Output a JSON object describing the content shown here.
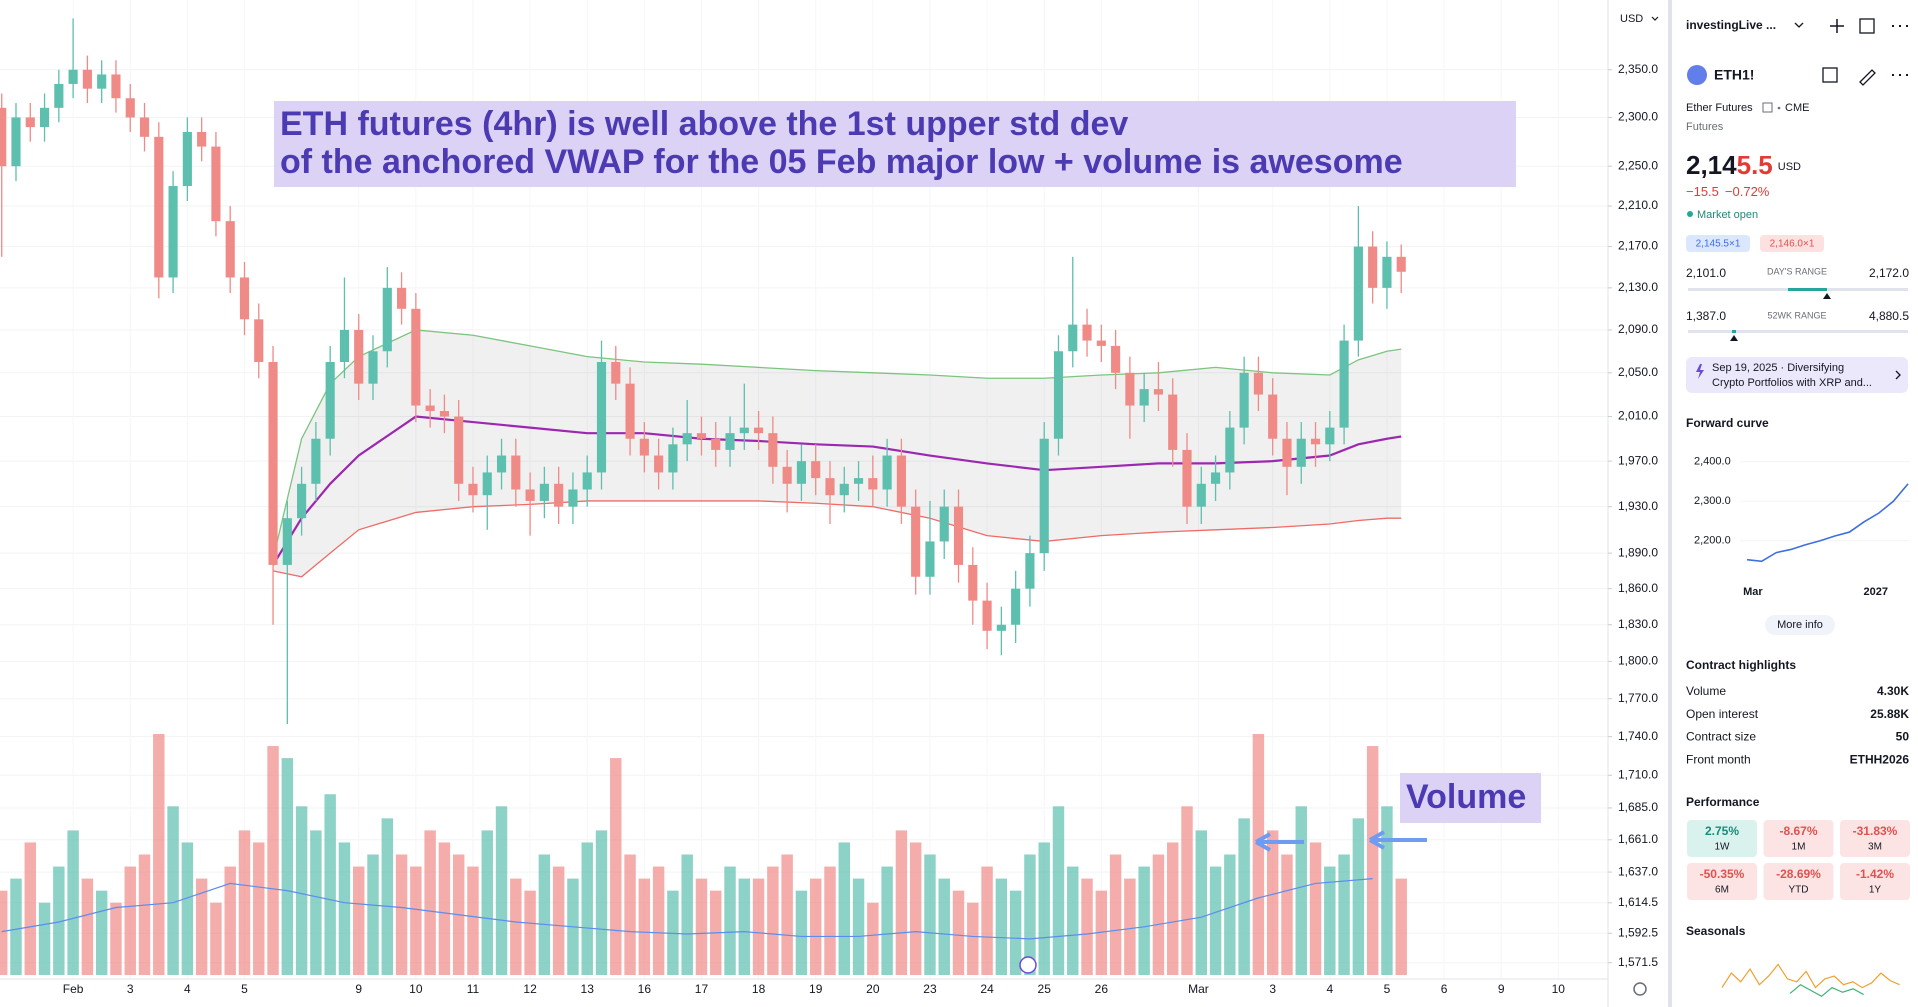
{
  "chart_data": {
    "type": "candlestick",
    "currency": "USD",
    "log_scale": true,
    "grid": true,
    "up_color": "#5dbfae",
    "down_color": "#f08a86",
    "xlim": [
      -1.28,
      26.87
    ],
    "ylim": [
      1560,
      2425
    ],
    "vlim": [
      0,
      100
    ],
    "yticks": [
      {
        "value": 2350,
        "label": "2,350.0"
      },
      {
        "value": 2300,
        "label": "2,300.0"
      },
      {
        "value": 2250,
        "label": "2,250.0"
      },
      {
        "value": 2210,
        "label": "2,210.0"
      },
      {
        "value": 2170,
        "label": "2,170.0"
      },
      {
        "value": 2130,
        "label": "2,130.0"
      },
      {
        "value": 2090,
        "label": "2,090.0"
      },
      {
        "value": 2050,
        "label": "2,050.0"
      },
      {
        "value": 2010,
        "label": "2,010.0"
      },
      {
        "value": 1970,
        "label": "1,970.0"
      },
      {
        "value": 1930,
        "label": "1,930.0"
      },
      {
        "value": 1890,
        "label": "1,890.0"
      },
      {
        "value": 1860,
        "label": "1,860.0"
      },
      {
        "value": 1830,
        "label": "1,830.0"
      },
      {
        "value": 1800,
        "label": "1,800.0"
      },
      {
        "value": 1770,
        "label": "1,770.0"
      },
      {
        "value": 1740,
        "label": "1,740.0"
      },
      {
        "value": 1710,
        "label": "1,710.0"
      },
      {
        "value": 1685,
        "label": "1,685.0"
      },
      {
        "value": 1661,
        "label": "1,661.0"
      },
      {
        "value": 1637,
        "label": "1,637.0"
      },
      {
        "value": 1614.5,
        "label": "1,614.5"
      },
      {
        "value": 1592.5,
        "label": "1,592.5"
      },
      {
        "value": 1571.5,
        "label": "1,571.5"
      }
    ],
    "xticks": [
      {
        "value": 0,
        "label": "Feb"
      },
      {
        "value": 1,
        "label": "3"
      },
      {
        "value": 2,
        "label": "4"
      },
      {
        "value": 3,
        "label": "5"
      },
      {
        "value": 5,
        "label": "9"
      },
      {
        "value": 6,
        "label": "10"
      },
      {
        "value": 7,
        "label": "11"
      },
      {
        "value": 8,
        "label": "12"
      },
      {
        "value": 9,
        "label": "13"
      },
      {
        "value": 10,
        "label": "16"
      },
      {
        "value": 11,
        "label": "17"
      },
      {
        "value": 12,
        "label": "18"
      },
      {
        "value": 13,
        "label": "19"
      },
      {
        "value": 14,
        "label": "20"
      },
      {
        "value": 15,
        "label": "23"
      },
      {
        "value": 16,
        "label": "24"
      },
      {
        "value": 17,
        "label": "25"
      },
      {
        "value": 18,
        "label": "26"
      },
      {
        "value": 19.7,
        "label": "Mar"
      },
      {
        "value": 21,
        "label": "3"
      },
      {
        "value": 22,
        "label": "4"
      },
      {
        "value": 23,
        "label": "5"
      },
      {
        "value": 24,
        "label": "6"
      },
      {
        "value": 25,
        "label": "9"
      },
      {
        "value": 26,
        "label": "10"
      }
    ],
    "candles": {
      "x": [
        -1.25,
        -1,
        -0.75,
        -0.5,
        -0.25,
        0,
        0.25,
        0.5,
        0.75,
        1,
        1.25,
        1.5,
        1.75,
        2,
        2.25,
        2.5,
        2.75,
        3,
        3.25,
        3.5,
        3.75,
        4,
        4.25,
        4.5,
        4.75,
        5,
        5.25,
        5.5,
        5.75,
        6,
        6.25,
        6.5,
        6.75,
        7,
        7.25,
        7.5,
        7.75,
        8,
        8.25,
        8.5,
        8.75,
        9,
        9.25,
        9.5,
        9.75,
        10,
        10.25,
        10.5,
        10.75,
        11,
        11.25,
        11.5,
        11.75,
        12,
        12.25,
        12.5,
        12.75,
        13,
        13.25,
        13.5,
        13.75,
        14,
        14.25,
        14.5,
        14.75,
        15,
        15.25,
        15.5,
        15.75,
        16,
        16.25,
        16.5,
        16.75,
        17,
        17.25,
        17.5,
        17.75,
        18,
        18.25,
        18.5,
        18.75,
        19,
        19.25,
        19.5,
        19.75,
        20,
        20.25,
        20.5,
        20.75,
        21,
        21.25,
        21.5,
        21.75,
        22,
        22.25,
        22.5,
        22.75,
        23,
        23.25
      ],
      "open": [
        2310,
        2250,
        2300,
        2290,
        2310,
        2335,
        2350,
        2330,
        2345,
        2320,
        2300,
        2280,
        2140,
        2230,
        2285,
        2270,
        2195,
        2140,
        2100,
        2060,
        1880,
        1920,
        1950,
        1990,
        2060,
        2090,
        2040,
        2070,
        2130,
        2110,
        2020,
        2015,
        2010,
        1950,
        1940,
        1960,
        1975,
        1945,
        1935,
        1950,
        1930,
        1945,
        1960,
        2060,
        2040,
        1990,
        1975,
        1960,
        1985,
        1995,
        1990,
        1980,
        1995,
        2000,
        1995,
        1965,
        1950,
        1970,
        1955,
        1940,
        1950,
        1955,
        1945,
        1975,
        1930,
        1870,
        1900,
        1930,
        1880,
        1850,
        1825,
        1830,
        1860,
        1890,
        1990,
        2070,
        2095,
        2080,
        2075,
        2050,
        2020,
        2035,
        2030,
        1980,
        1930,
        1950,
        1960,
        2000,
        2050,
        2030,
        1990,
        1965,
        1990,
        1985,
        2000,
        2080,
        2170,
        2130,
        2160
      ],
      "high": [
        2325,
        2315,
        2315,
        2325,
        2350,
        2405,
        2365,
        2360,
        2360,
        2335,
        2315,
        2295,
        2245,
        2300,
        2300,
        2285,
        2210,
        2155,
        2115,
        2075,
        1935,
        1965,
        2005,
        2075,
        2140,
        2105,
        2085,
        2150,
        2145,
        2125,
        2035,
        2030,
        2025,
        1965,
        1975,
        1990,
        1990,
        1960,
        1965,
        1965,
        1960,
        1975,
        2080,
        2075,
        2055,
        2005,
        1990,
        2000,
        2025,
        2010,
        2005,
        2010,
        2040,
        2015,
        2010,
        1980,
        1985,
        1985,
        1970,
        1965,
        1970,
        1975,
        1990,
        1990,
        1945,
        1935,
        1945,
        1945,
        1895,
        1865,
        1845,
        1875,
        1905,
        2005,
        2085,
        2160,
        2110,
        2095,
        2090,
        2065,
        2050,
        2060,
        2045,
        1995,
        1965,
        1975,
        2015,
        2065,
        2065,
        2045,
        2005,
        2005,
        2005,
        2015,
        2095,
        2210,
        2185,
        2175,
        2172
      ],
      "low": [
        2160,
        2235,
        2275,
        2275,
        2295,
        2320,
        2315,
        2315,
        2305,
        2285,
        2265,
        2120,
        2125,
        2215,
        2255,
        2180,
        2125,
        2085,
        2045,
        1830,
        1750,
        1905,
        1935,
        1975,
        2045,
        2025,
        2025,
        2055,
        2095,
        2005,
        2000,
        1995,
        1935,
        1925,
        1910,
        1945,
        1930,
        1905,
        1920,
        1915,
        1915,
        1930,
        1945,
        2025,
        1975,
        1960,
        1945,
        1945,
        1970,
        1975,
        1965,
        1965,
        1980,
        1980,
        1950,
        1925,
        1935,
        1940,
        1915,
        1925,
        1935,
        1930,
        1930,
        1915,
        1855,
        1855,
        1885,
        1865,
        1830,
        1810,
        1805,
        1815,
        1845,
        1875,
        1975,
        2055,
        2065,
        2060,
        2035,
        1990,
        2005,
        2015,
        1965,
        1915,
        1915,
        1935,
        1945,
        1985,
        2015,
        1975,
        1940,
        1950,
        1965,
        1970,
        1985,
        2065,
        2115,
        2110,
        2125
      ],
      "close": [
        2250,
        2300,
        2290,
        2310,
        2335,
        2350,
        2330,
        2345,
        2320,
        2300,
        2280,
        2140,
        2230,
        2285,
        2270,
        2195,
        2140,
        2100,
        2060,
        1880,
        1920,
        1950,
        1990,
        2060,
        2090,
        2040,
        2070,
        2130,
        2110,
        2020,
        2015,
        2010,
        1950,
        1940,
        1960,
        1975,
        1945,
        1935,
        1950,
        1930,
        1945,
        1960,
        2060,
        2040,
        1990,
        1975,
        1960,
        1985,
        1995,
        1990,
        1980,
        1995,
        2000,
        1995,
        1965,
        1950,
        1970,
        1955,
        1940,
        1950,
        1955,
        1945,
        1975,
        1930,
        1870,
        1900,
        1930,
        1880,
        1850,
        1825,
        1830,
        1860,
        1890,
        1990,
        2070,
        2095,
        2080,
        2075,
        2050,
        2020,
        2035,
        2030,
        1980,
        1930,
        1950,
        1960,
        2000,
        2050,
        2030,
        1990,
        1965,
        1990,
        1985,
        2000,
        2080,
        2170,
        2130,
        2160,
        2145.5
      ],
      "volume": [
        35,
        40,
        55,
        30,
        45,
        60,
        40,
        35,
        30,
        45,
        50,
        100,
        70,
        55,
        40,
        30,
        45,
        60,
        55,
        95,
        90,
        70,
        60,
        75,
        55,
        45,
        50,
        65,
        50,
        45,
        60,
        55,
        50,
        45,
        60,
        70,
        40,
        35,
        50,
        45,
        40,
        55,
        60,
        90,
        50,
        40,
        45,
        35,
        50,
        40,
        35,
        45,
        40,
        40,
        45,
        50,
        35,
        40,
        45,
        55,
        40,
        30,
        45,
        60,
        55,
        50,
        40,
        35,
        30,
        45,
        40,
        35,
        50,
        55,
        70,
        45,
        40,
        35,
        50,
        40,
        45,
        50,
        55,
        70,
        60,
        45,
        50,
        65,
        100,
        60,
        50,
        70,
        55,
        45,
        50,
        65,
        95,
        70,
        40
      ]
    },
    "vwap": {
      "x": [
        3.5,
        4,
        4.5,
        5,
        6,
        7,
        8,
        9,
        10,
        11,
        12,
        13,
        14,
        15,
        16,
        17,
        18,
        19,
        20,
        21,
        22,
        22.5,
        23,
        23.25
      ],
      "band_color": "rgba(0,0,0,0.06)",
      "series": [
        {
          "color": "#9c27b0",
          "values": [
            1880,
            1920,
            1950,
            1975,
            2010,
            2005,
            2000,
            1995,
            1995,
            1990,
            1988,
            1985,
            1983,
            1975,
            1968,
            1962,
            1965,
            1968,
            1968,
            1970,
            1975,
            1985,
            1990,
            1992
          ]
        },
        {
          "color": "#7cc47f",
          "values": [
            1885,
            1990,
            2040,
            2065,
            2090,
            2085,
            2075,
            2065,
            2060,
            2058,
            2055,
            2052,
            2050,
            2048,
            2045,
            2045,
            2048,
            2050,
            2055,
            2050,
            2048,
            2062,
            2070,
            2072
          ]
        },
        {
          "color": "#ef6b67",
          "values": [
            1875,
            1870,
            1890,
            1910,
            1925,
            1930,
            1932,
            1935,
            1935,
            1935,
            1935,
            1933,
            1930,
            1920,
            1905,
            1900,
            1905,
            1908,
            1910,
            1912,
            1915,
            1918,
            1920,
            1920
          ]
        }
      ]
    },
    "volume_ma": {
      "color": "#5b8def",
      "x": [
        -1.25,
        -0.25,
        0.75,
        1.75,
        2.75,
        3.75,
        4.75,
        5.75,
        6.75,
        7.75,
        8.75,
        9.75,
        10.75,
        11.75,
        12.75,
        13.75,
        14.75,
        15.75,
        16.75,
        17.75,
        18.75,
        19.75,
        20.75,
        21.75,
        22.75
      ],
      "values": [
        18,
        22,
        28,
        30,
        38,
        35,
        30,
        28,
        25,
        22,
        20,
        18,
        17,
        18,
        16,
        16,
        18,
        16,
        15,
        17,
        20,
        24,
        32,
        38,
        40
      ]
    },
    "annotations": [
      {
        "lines": [
          "ETH futures (4hr) is well above the 1st upper std dev",
          "of the anchored VWAP for the 05 Feb major low + volume is awesome"
        ]
      },
      {
        "lines": [
          "Volume"
        ]
      }
    ]
  },
  "sidebar": {
    "watchlist": "investingLive ...",
    "symbol": "ETH1!",
    "name": "Ether Futures",
    "exchange": "CME",
    "kind": "Futures",
    "price_main": "2,14",
    "price_end": "5.5",
    "currency": "USD",
    "change": "−15.5",
    "change_pct": "−0.72%",
    "status": "Market open",
    "bid": "2,145.5×1",
    "ask": "2,146.0×1",
    "day_low": "2,101.0",
    "day_label": "DAY'S RANGE",
    "day_high": "2,172.0",
    "wk_low": "1,387.0",
    "wk_label": "52WK RANGE",
    "wk_high": "4,880.5",
    "news": [
      "Sep 19, 2025 · Diversifying",
      "Crypto Portfolios with XRP and..."
    ],
    "forward_curve": {
      "title": "Forward curve",
      "x": [
        0,
        1,
        2,
        3,
        4,
        5,
        6,
        7,
        8,
        9,
        10,
        11
      ],
      "values": [
        2152,
        2148,
        2170,
        2178,
        2190,
        2200,
        2212,
        2222,
        2248,
        2270,
        2300,
        2344
      ],
      "xlim": [
        0,
        11
      ],
      "ylim": [
        2050,
        2440
      ],
      "yticks": [
        {
          "value": 2400,
          "label": "2,400.0"
        },
        {
          "value": 2300,
          "label": "2,300.0"
        },
        {
          "value": 2200,
          "label": "2,200.0"
        }
      ],
      "xticks": [
        {
          "value": 0.4,
          "label": "Mar"
        },
        {
          "value": 8.8,
          "label": "2027"
        }
      ],
      "color": "#3d6fe0"
    },
    "more_info": "More info",
    "highlights": {
      "title": "Contract highlights",
      "rows": [
        [
          "Volume",
          "4.30K"
        ],
        [
          "Open interest",
          "25.88K"
        ],
        [
          "Contract size",
          "50"
        ],
        [
          "Front month",
          "ETHH2026"
        ]
      ]
    },
    "performance": {
      "title": "Performance",
      "cells": [
        [
          "2.75%",
          "1W"
        ],
        [
          "-8.67%",
          "1M"
        ],
        [
          "-31.83%",
          "3M"
        ],
        [
          "-50.35%",
          "6M"
        ],
        [
          "-28.69%",
          "YTD"
        ],
        [
          "-1.42%",
          "1Y"
        ]
      ]
    },
    "seasonals": {
      "title": "Seasonals",
      "ylim": [
        0,
        100
      ],
      "series": [
        {
          "color": "#f0a030",
          "values": [
            30,
            55,
            40,
            62,
            35,
            50,
            70,
            45,
            40,
            58,
            30,
            45,
            50,
            35,
            40,
            30,
            38,
            55,
            42,
            35
          ]
        },
        {
          "color": "#3cb371",
          "values": [
            20,
            35,
            25,
            15,
            30,
            22,
            28,
            18
          ]
        }
      ]
    }
  }
}
